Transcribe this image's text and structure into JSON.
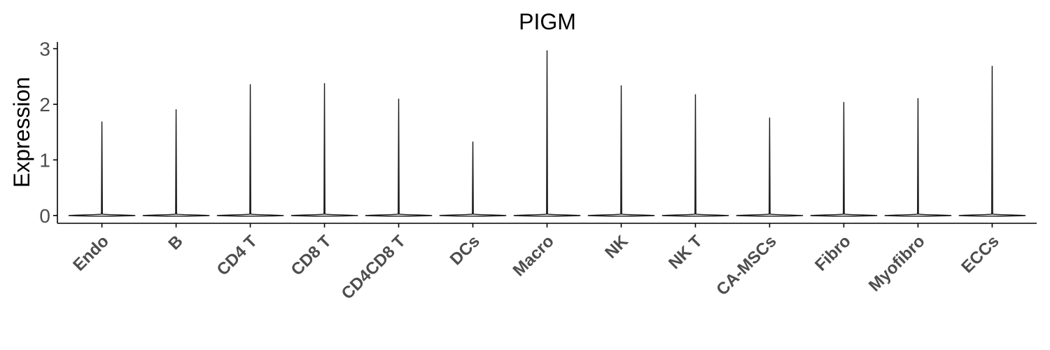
{
  "chart_data": {
    "type": "violin",
    "title": "PIGM",
    "xlabel": "",
    "ylabel": "Expression",
    "ylim": [
      -0.14,
      3.12
    ],
    "yticks": [
      0,
      1,
      2,
      3
    ],
    "categories": [
      "Endo",
      "B",
      "CD4 T",
      "CD8 T",
      "CD4CD8 T",
      "DCs",
      "Macro",
      "NK",
      "NK T",
      "CA-MSCs",
      "Fibro",
      "Myofibro",
      "ECCs"
    ],
    "max_values": [
      1.69,
      1.91,
      2.36,
      2.38,
      2.1,
      1.33,
      2.97,
      2.34,
      2.18,
      1.76,
      2.04,
      2.11,
      2.69
    ],
    "bulk_value": 0,
    "grid": false,
    "legend": "none"
  }
}
